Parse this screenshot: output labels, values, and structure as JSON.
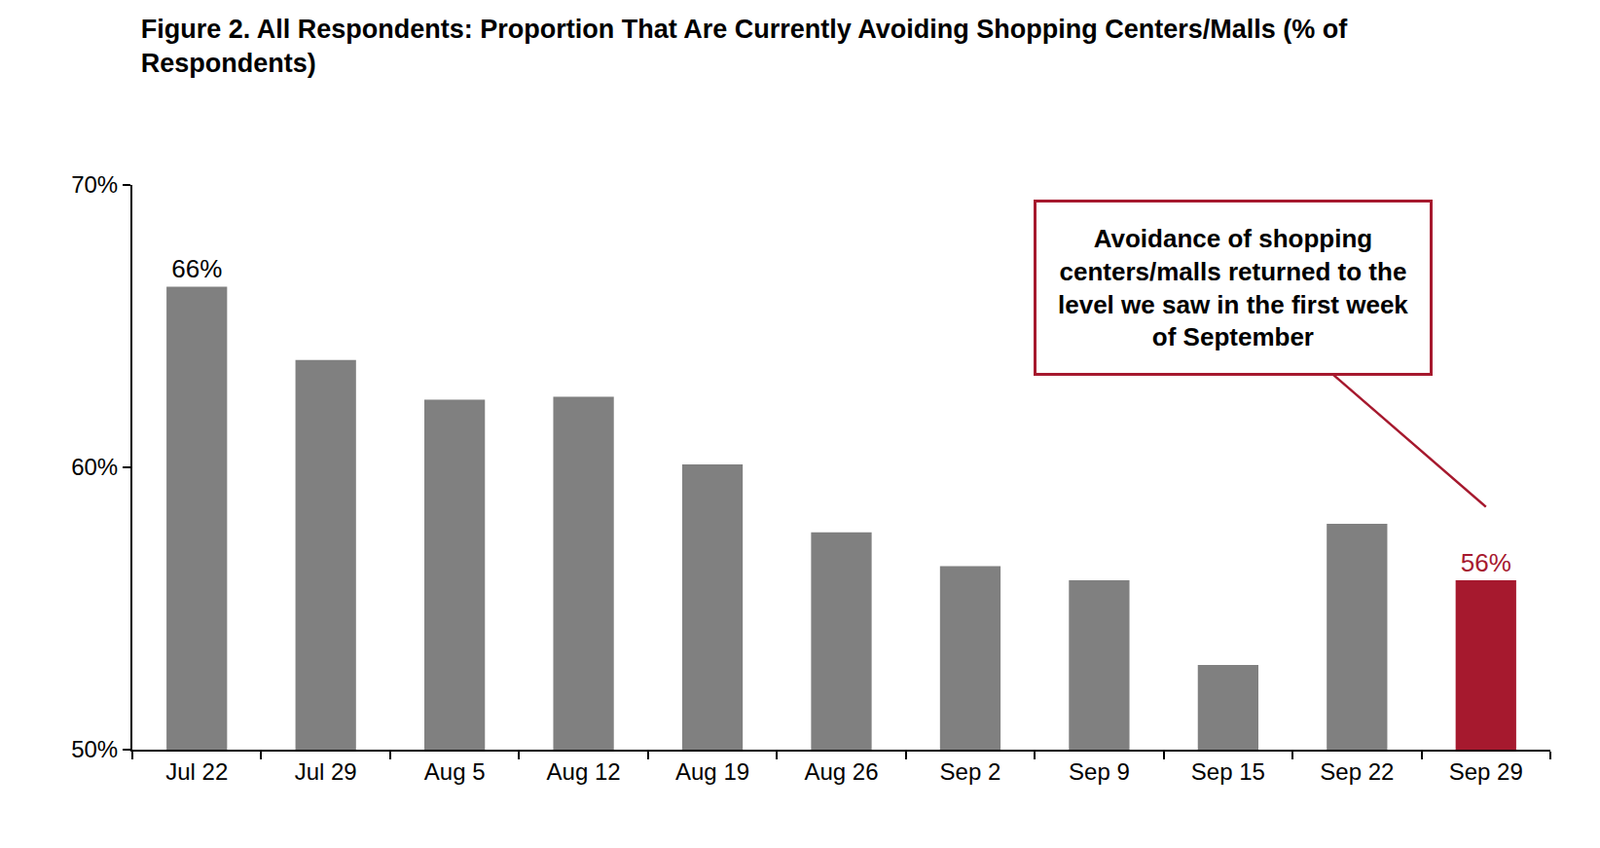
{
  "chart_data": {
    "type": "bar",
    "title": "Figure 2. All Respondents: Proportion That Are Currently Avoiding Shopping Centers/Malls (% of Respondents)",
    "categories": [
      "Jul 22",
      "Jul 29",
      "Aug 5",
      "Aug 12",
      "Aug 19",
      "Aug 26",
      "Sep 2",
      "Sep 9",
      "Sep 15",
      "Sep 22",
      "Sep 29"
    ],
    "values": [
      66.4,
      63.8,
      62.4,
      62.5,
      60.1,
      57.7,
      56.5,
      56.0,
      53.0,
      58.0,
      56.0
    ],
    "data_labels": true,
    "value_labels": [
      "66%",
      null,
      null,
      null,
      null,
      null,
      null,
      null,
      null,
      null,
      "56%"
    ],
    "colors": [
      "#808080",
      "#808080",
      "#808080",
      "#808080",
      "#808080",
      "#808080",
      "#808080",
      "#808080",
      "#808080",
      "#808080",
      "#A6192E"
    ],
    "ylim": [
      50,
      70
    ],
    "yticks": [
      {
        "value": 50,
        "label": "50%"
      },
      {
        "value": 60,
        "label": "60%"
      },
      {
        "value": 70,
        "label": "70%"
      }
    ],
    "grid": false,
    "annotations": [
      {
        "text": [
          "Avoidance of shopping",
          "centers/malls returned to the",
          "level we saw in the first week",
          "of September"
        ],
        "category": "Sep 29"
      }
    ]
  }
}
